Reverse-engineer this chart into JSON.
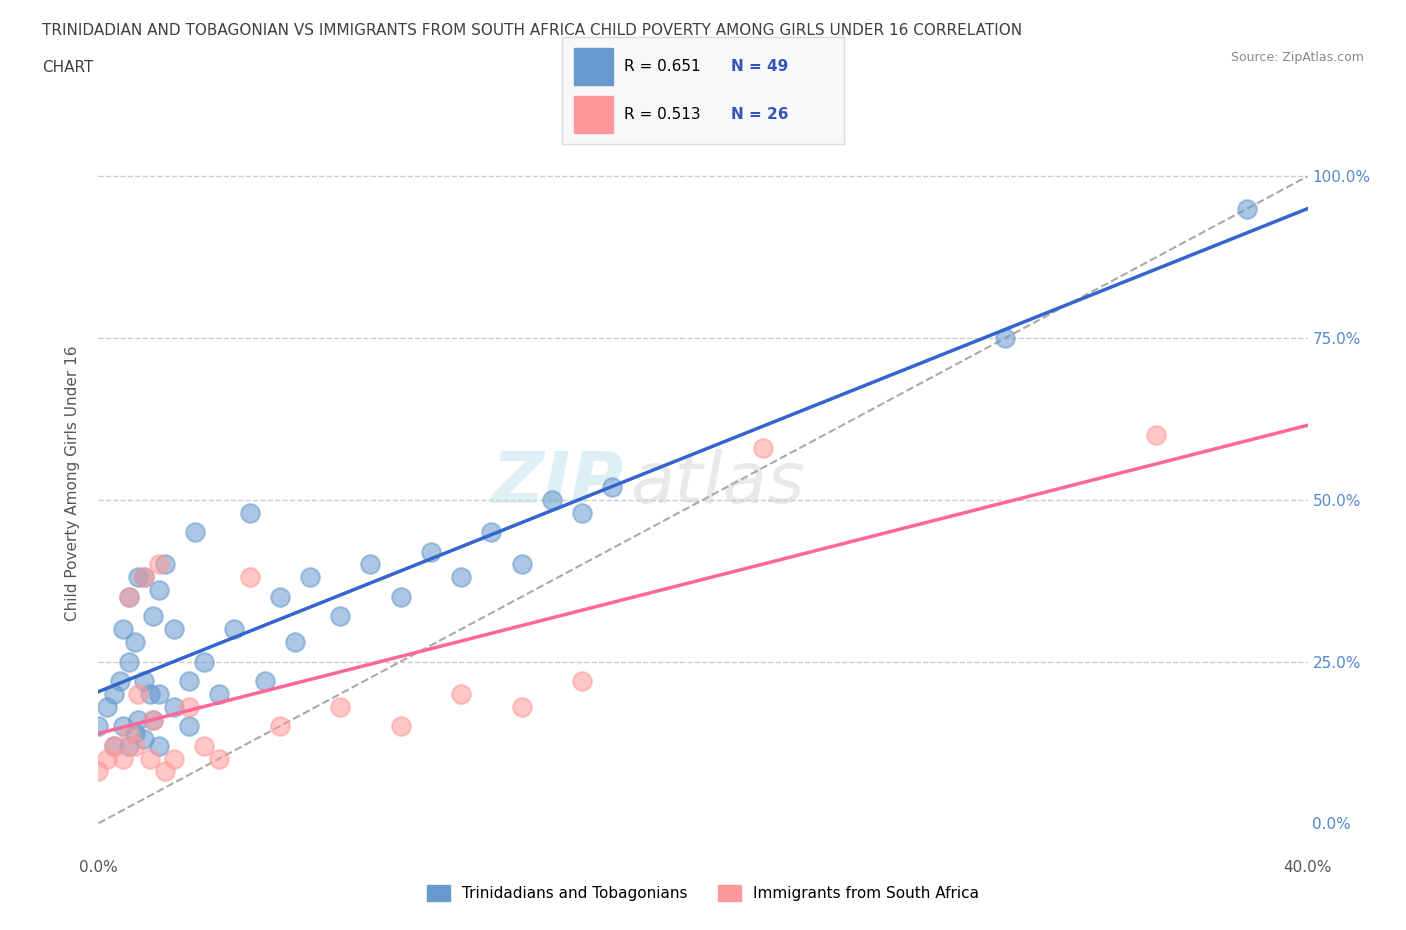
{
  "title_line1": "TRINIDADIAN AND TOBAGONIAN VS IMMIGRANTS FROM SOUTH AFRICA CHILD POVERTY AMONG GIRLS UNDER 16 CORRELATION",
  "title_line2": "CHART",
  "source": "Source: ZipAtlas.com",
  "ylabel": "Child Poverty Among Girls Under 16",
  "watermark_zip": "ZIP",
  "watermark_atlas": "atlas",
  "xlim": [
    0.0,
    0.4
  ],
  "ylim": [
    -0.05,
    1.1
  ],
  "blue_r": 0.651,
  "blue_n": 49,
  "pink_r": 0.513,
  "pink_n": 26,
  "blue_color": "#6699CC",
  "pink_color": "#FF9999",
  "blue_line_color": "#3366CC",
  "pink_line_color": "#FF6699",
  "dashed_line_color": "#AAAAAA",
  "legend_r_color": "#3355BB",
  "blue_scatter_x": [
    0.0,
    0.003,
    0.005,
    0.005,
    0.007,
    0.008,
    0.008,
    0.01,
    0.01,
    0.01,
    0.012,
    0.012,
    0.013,
    0.013,
    0.015,
    0.015,
    0.015,
    0.017,
    0.018,
    0.018,
    0.02,
    0.02,
    0.02,
    0.022,
    0.025,
    0.025,
    0.03,
    0.03,
    0.032,
    0.035,
    0.04,
    0.045,
    0.05,
    0.055,
    0.06,
    0.065,
    0.07,
    0.08,
    0.09,
    0.1,
    0.11,
    0.12,
    0.13,
    0.14,
    0.15,
    0.16,
    0.17,
    0.3,
    0.38
  ],
  "blue_scatter_y": [
    0.15,
    0.18,
    0.12,
    0.2,
    0.22,
    0.15,
    0.3,
    0.12,
    0.25,
    0.35,
    0.14,
    0.28,
    0.38,
    0.16,
    0.13,
    0.22,
    0.38,
    0.2,
    0.16,
    0.32,
    0.12,
    0.2,
    0.36,
    0.4,
    0.18,
    0.3,
    0.15,
    0.22,
    0.45,
    0.25,
    0.2,
    0.3,
    0.48,
    0.22,
    0.35,
    0.28,
    0.38,
    0.32,
    0.4,
    0.35,
    0.42,
    0.38,
    0.45,
    0.4,
    0.5,
    0.48,
    0.52,
    0.75,
    0.95
  ],
  "pink_scatter_x": [
    0.0,
    0.003,
    0.005,
    0.008,
    0.01,
    0.01,
    0.012,
    0.013,
    0.015,
    0.017,
    0.018,
    0.02,
    0.022,
    0.025,
    0.03,
    0.035,
    0.04,
    0.05,
    0.06,
    0.08,
    0.1,
    0.12,
    0.14,
    0.16,
    0.22,
    0.35
  ],
  "pink_scatter_y": [
    0.08,
    0.1,
    0.12,
    0.1,
    0.14,
    0.35,
    0.12,
    0.2,
    0.38,
    0.1,
    0.16,
    0.4,
    0.08,
    0.1,
    0.18,
    0.12,
    0.1,
    0.38,
    0.15,
    0.18,
    0.15,
    0.2,
    0.18,
    0.22,
    0.58,
    0.6
  ],
  "grid_color": "#CCCCCC",
  "bg_color": "#FFFFFF",
  "title_color": "#404040",
  "title_fontsize": 11,
  "axis_label_color": "#555555",
  "tick_color_right": "#5588CC",
  "legend_bg": "#F8F8F8",
  "legend_edge": "#DDDDDD",
  "bottom_legend_blue": "Trinidadians and Tobagonians",
  "bottom_legend_pink": "Immigrants from South Africa"
}
